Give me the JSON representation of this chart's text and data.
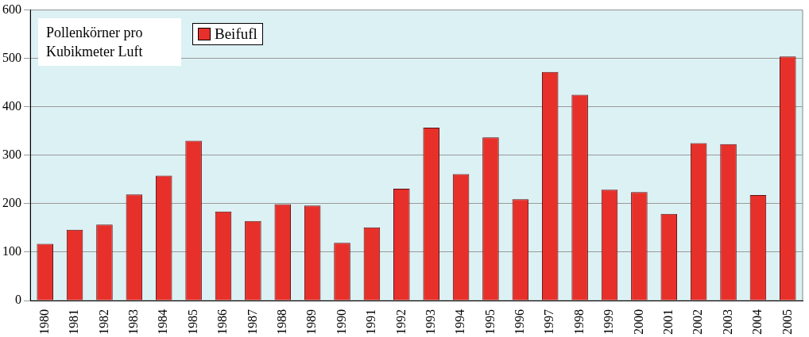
{
  "chart_data": {
    "type": "bar",
    "categories": [
      "1980",
      "1981",
      "1982",
      "1983",
      "1984",
      "1985",
      "1986",
      "1987",
      "1988",
      "1989",
      "1990",
      "1991",
      "1992",
      "1993",
      "1994",
      "1995",
      "1996",
      "1997",
      "1998",
      "1999",
      "2000",
      "2001",
      "2002",
      "2003",
      "2004",
      "2005"
    ],
    "series": [
      {
        "name": "Beifufl",
        "color": "#e8302a",
        "values": [
          117,
          146,
          157,
          219,
          258,
          330,
          184,
          164,
          199,
          196,
          119,
          151,
          231,
          357,
          261,
          337,
          209,
          472,
          425,
          229,
          224,
          179,
          325,
          323,
          218,
          504
        ]
      }
    ],
    "ylim": [
      0,
      600
    ],
    "yticks": [
      0,
      100,
      200,
      300,
      400,
      500,
      600
    ],
    "grid": "y",
    "legend": "top left",
    "annotations": [
      "Pollenkörner pro Kubikmeter Luft"
    ]
  }
}
